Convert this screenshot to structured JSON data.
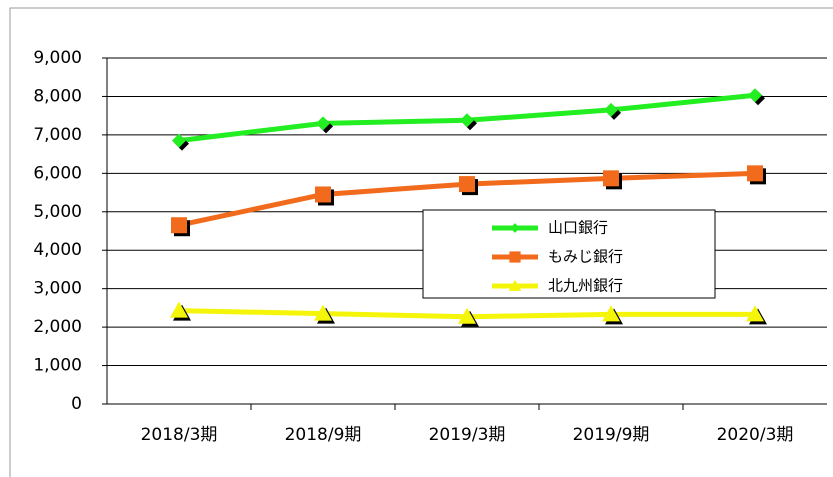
{
  "chart_data": {
    "type": "line",
    "categories": [
      "2018/3期",
      "2018/9期",
      "2019/3期",
      "2019/9期",
      "2020/3期"
    ],
    "series": [
      {
        "name": "山口銀行",
        "color": "#22ee22",
        "marker": "diamond",
        "values": [
          6850,
          7300,
          7380,
          7650,
          8030
        ]
      },
      {
        "name": "もみじ銀行",
        "color": "#f26a1b",
        "marker": "square",
        "values": [
          4650,
          5450,
          5720,
          5870,
          6000
        ]
      },
      {
        "name": "北九州銀行",
        "color": "#f5f50a",
        "marker": "triangle",
        "values": [
          2430,
          2350,
          2270,
          2330,
          2330
        ]
      }
    ],
    "ylim": [
      0,
      9000
    ],
    "yticks": [
      0,
      {
        "value": 1000,
        "label": "1,000"
      },
      {
        "value": 2000,
        "label": "2,000"
      },
      {
        "value": 3000,
        "label": "3,000"
      },
      {
        "value": 4000,
        "label": "4,000"
      },
      {
        "value": 5000,
        "label": "5,000"
      },
      {
        "value": 6000,
        "label": "6,000"
      },
      {
        "value": 7000,
        "label": "7,000"
      },
      {
        "value": 8000,
        "label": "8,000"
      },
      {
        "value": 9000,
        "label": "9,000"
      }
    ],
    "grid": true
  }
}
